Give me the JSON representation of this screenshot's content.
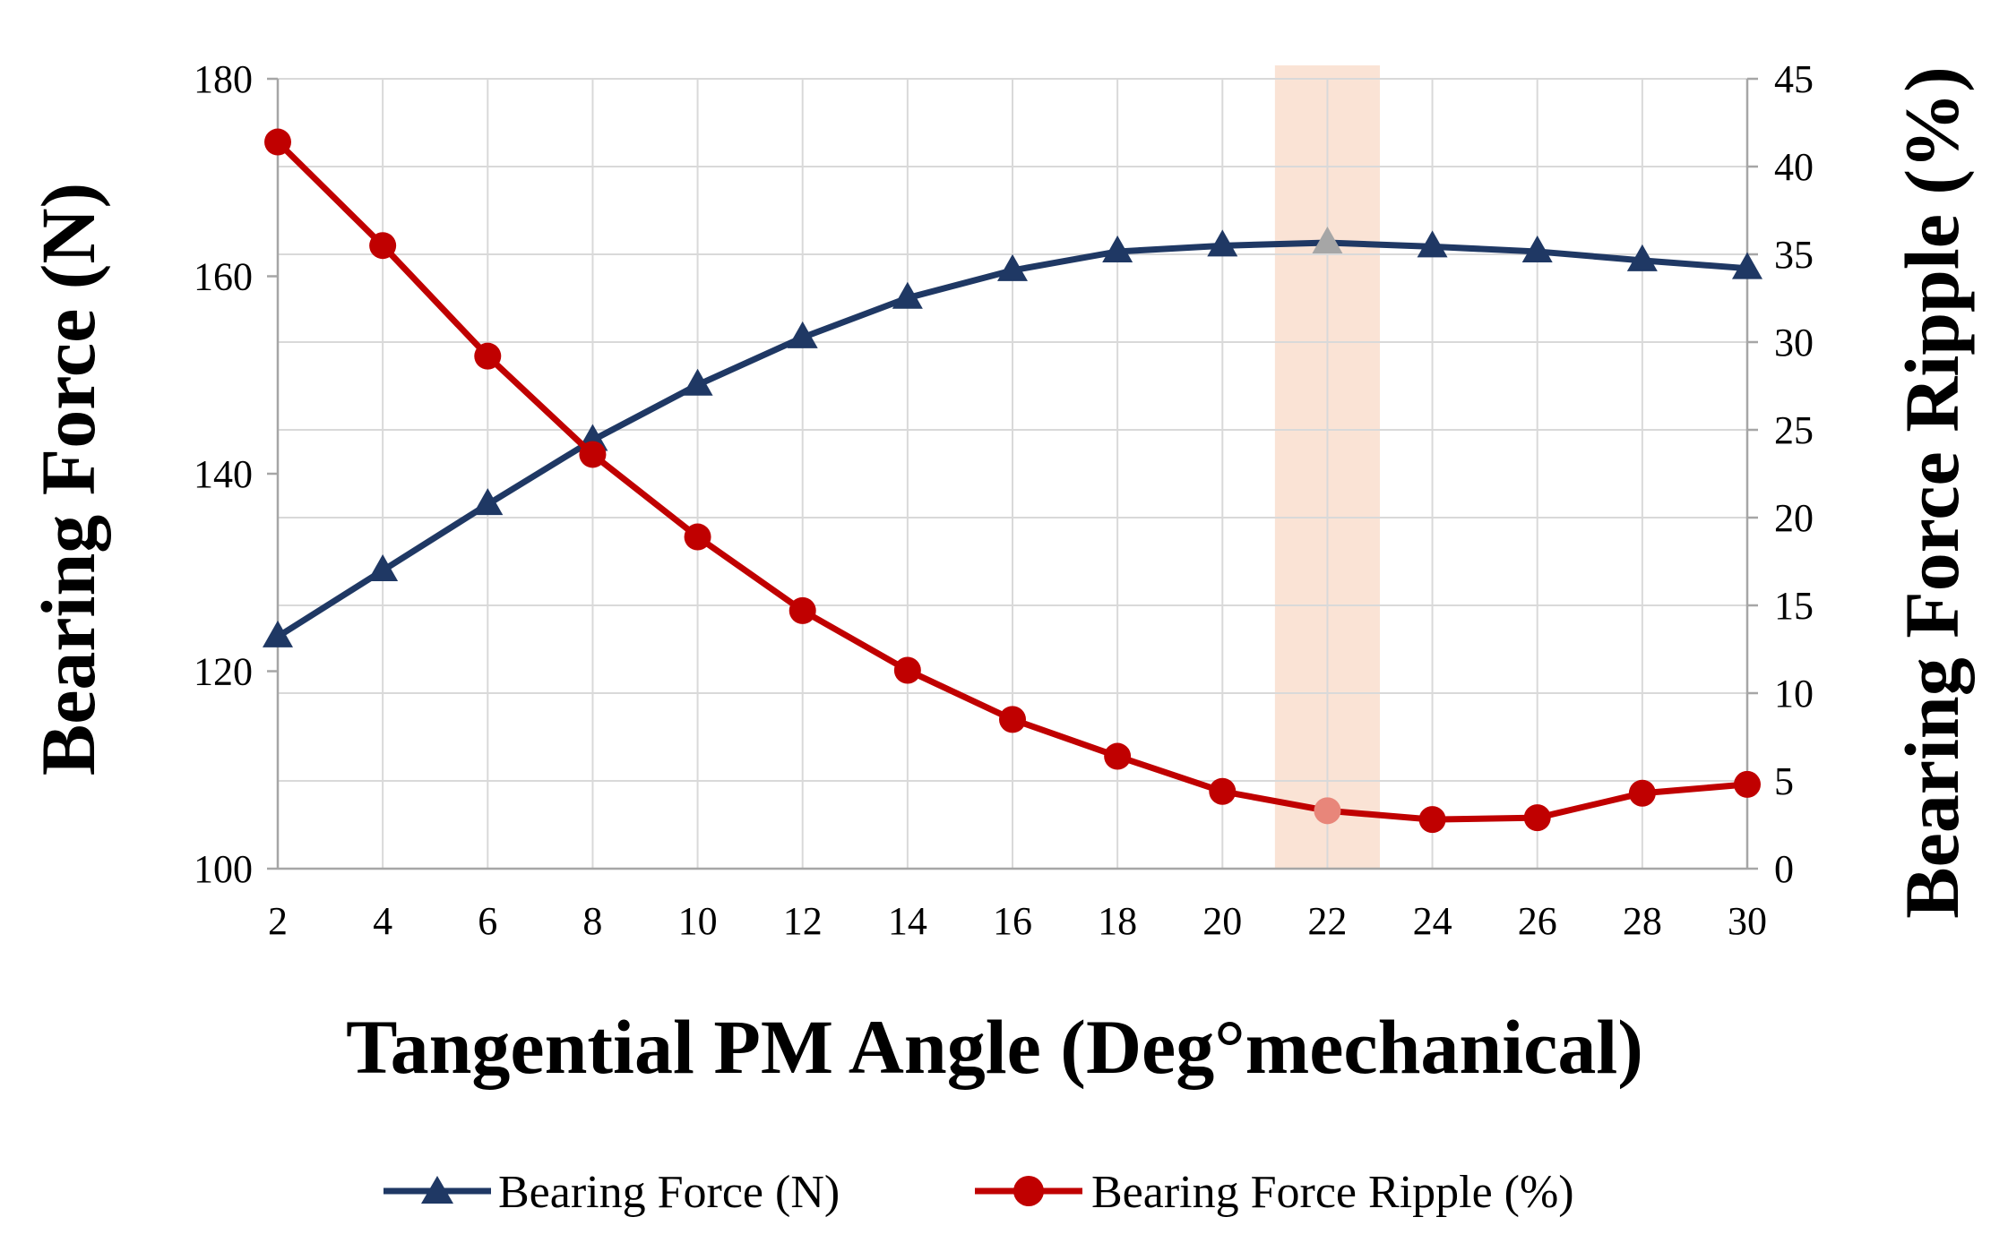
{
  "chart_data": {
    "type": "line",
    "title": "",
    "xlabel": "Tangential  PM Angle (Deg°mechanical)",
    "ylabel_left": "Bearing  Force (N)",
    "ylabel_right": "Bearing Force Ripple (%)",
    "x": [
      2,
      4,
      6,
      8,
      10,
      12,
      14,
      16,
      18,
      20,
      22,
      24,
      26,
      28,
      30
    ],
    "x_ticks": [
      "2",
      "4",
      "6",
      "8",
      "10",
      "12",
      "14",
      "16",
      "18",
      "20",
      "22",
      "24",
      "26",
      "28",
      "30"
    ],
    "xlim": [
      2,
      30
    ],
    "ylim_left": [
      100,
      180
    ],
    "ylim_right": [
      0,
      45
    ],
    "y_left_ticks": [
      "100",
      "120",
      "140",
      "160",
      "180"
    ],
    "y_right_ticks": [
      "0",
      "5",
      "10",
      "15",
      "20",
      "25",
      "30",
      "35",
      "40",
      "45"
    ],
    "grid": true,
    "highlight": {
      "x": 22,
      "from": 21,
      "to": 23,
      "color": "#FAE3D5"
    },
    "series": [
      {
        "name": "Bearing Force (N)",
        "axis": "left",
        "marker": "triangle",
        "color": "#1F3864",
        "highlight_color": "#A6A6A6",
        "values": [
          123.5,
          130.2,
          136.9,
          143.4,
          149.0,
          153.8,
          157.8,
          160.6,
          162.5,
          163.1,
          163.4,
          163.0,
          162.5,
          161.6,
          160.8
        ]
      },
      {
        "name": "Bearing Force Ripple (%)",
        "axis": "right",
        "marker": "circle",
        "color": "#C00000",
        "highlight_color": "#E8867A",
        "values": [
          41.4,
          35.5,
          29.2,
          23.6,
          18.9,
          14.7,
          11.3,
          8.5,
          6.4,
          4.4,
          3.3,
          2.8,
          2.9,
          4.3,
          4.8
        ]
      }
    ],
    "legend": {
      "placement": "bottom-center"
    }
  }
}
